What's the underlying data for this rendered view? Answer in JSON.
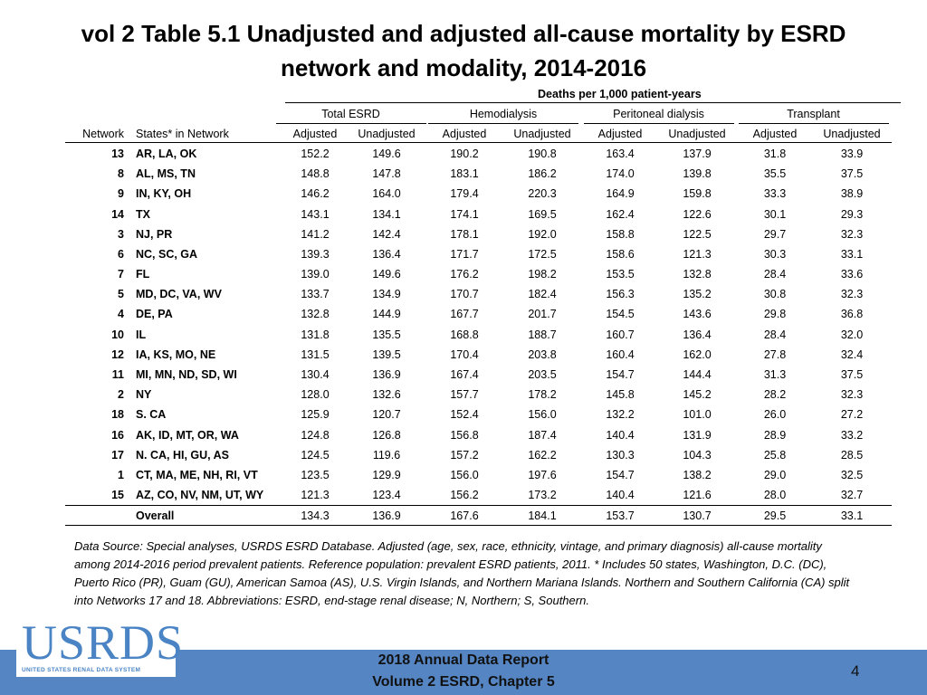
{
  "title": "vol 2 Table 5.1 Unadjusted and adjusted all-cause mortality by ESRD network and modality, 2014-2016",
  "table": {
    "super_header": "Deaths per 1,000 patient-years",
    "groups": [
      "Total ESRD",
      "Hemodialysis",
      "Peritoneal dialysis",
      "Transplant"
    ],
    "columns": [
      "Network",
      "States* in Network",
      "Adjusted",
      "Unadjusted",
      "Adjusted",
      "Unadjusted",
      "Adjusted",
      "Unadjusted",
      "Adjusted",
      "Unadjusted"
    ],
    "rows": [
      [
        "13",
        "AR, LA, OK",
        "152.2",
        "149.6",
        "190.2",
        "190.8",
        "163.4",
        "137.9",
        "31.8",
        "33.9"
      ],
      [
        "8",
        "AL, MS, TN",
        "148.8",
        "147.8",
        "183.1",
        "186.2",
        "174.0",
        "139.8",
        "35.5",
        "37.5"
      ],
      [
        "9",
        "IN, KY, OH",
        "146.2",
        "164.0",
        "179.4",
        "220.3",
        "164.9",
        "159.8",
        "33.3",
        "38.9"
      ],
      [
        "14",
        "TX",
        "143.1",
        "134.1",
        "174.1",
        "169.5",
        "162.4",
        "122.6",
        "30.1",
        "29.3"
      ],
      [
        "3",
        "NJ, PR",
        "141.2",
        "142.4",
        "178.1",
        "192.0",
        "158.8",
        "122.5",
        "29.7",
        "32.3"
      ],
      [
        "6",
        "NC, SC, GA",
        "139.3",
        "136.4",
        "171.7",
        "172.5",
        "158.6",
        "121.3",
        "30.3",
        "33.1"
      ],
      [
        "7",
        "FL",
        "139.0",
        "149.6",
        "176.2",
        "198.2",
        "153.5",
        "132.8",
        "28.4",
        "33.6"
      ],
      [
        "5",
        "MD, DC, VA, WV",
        "133.7",
        "134.9",
        "170.7",
        "182.4",
        "156.3",
        "135.2",
        "30.8",
        "32.3"
      ],
      [
        "4",
        "DE, PA",
        "132.8",
        "144.9",
        "167.7",
        "201.7",
        "154.5",
        "143.6",
        "29.8",
        "36.8"
      ],
      [
        "10",
        "IL",
        "131.8",
        "135.5",
        "168.8",
        "188.7",
        "160.7",
        "136.4",
        "28.4",
        "32.0"
      ],
      [
        "12",
        "IA, KS, MO, NE",
        "131.5",
        "139.5",
        "170.4",
        "203.8",
        "160.4",
        "162.0",
        "27.8",
        "32.4"
      ],
      [
        "11",
        "MI, MN, ND, SD, WI",
        "130.4",
        "136.9",
        "167.4",
        "203.5",
        "154.7",
        "144.4",
        "31.3",
        "37.5"
      ],
      [
        "2",
        "NY",
        "128.0",
        "132.6",
        "157.7",
        "178.2",
        "145.8",
        "145.2",
        "28.2",
        "32.3"
      ],
      [
        "18",
        "S. CA",
        "125.9",
        "120.7",
        "152.4",
        "156.0",
        "132.2",
        "101.0",
        "26.0",
        "27.2"
      ],
      [
        "16",
        "AK, ID, MT, OR, WA",
        "124.8",
        "126.8",
        "156.8",
        "187.4",
        "140.4",
        "131.9",
        "28.9",
        "33.2"
      ],
      [
        "17",
        "N. CA, HI, GU, AS",
        "124.5",
        "119.6",
        "157.2",
        "162.2",
        "130.3",
        "104.3",
        "25.8",
        "28.5"
      ],
      [
        "1",
        "CT, MA, ME, NH, RI, VT",
        "123.5",
        "129.9",
        "156.0",
        "197.6",
        "154.7",
        "138.2",
        "29.0",
        "32.5"
      ],
      [
        "15",
        "AZ, CO, NV, NM, UT, WY",
        "121.3",
        "123.4",
        "156.2",
        "173.2",
        "140.4",
        "121.6",
        "28.0",
        "32.7"
      ]
    ],
    "overall": {
      "label": "Overall",
      "values": [
        "134.3",
        "136.9",
        "167.6",
        "184.1",
        "153.7",
        "130.7",
        "29.5",
        "33.1"
      ]
    }
  },
  "note": "Data Source: Special analyses, USRDS ESRD Database. Adjusted (age, sex, race, ethnicity, vintage, and primary diagnosis) all-cause mortality among 2014-2016 period prevalent patients. Reference population: prevalent ESRD patients, 2011. * Includes 50 states, Washington, D.C. (DC), Puerto Rico (PR), Guam (GU), American Samoa (AS), U.S. Virgin Islands, and Northern Mariana Islands. Northern and Southern California (CA) split into Networks 17 and 18. Abbreviations: ESRD, end-stage renal disease; N, Northern; S, Southern.",
  "footer": {
    "logo": "USRDS",
    "logo_subtitle": "UNITED STATES RENAL DATA SYSTEM",
    "report": "2018 Annual Data Report",
    "chapter": "Volume 2 ESRD, Chapter 5",
    "page": "4"
  }
}
